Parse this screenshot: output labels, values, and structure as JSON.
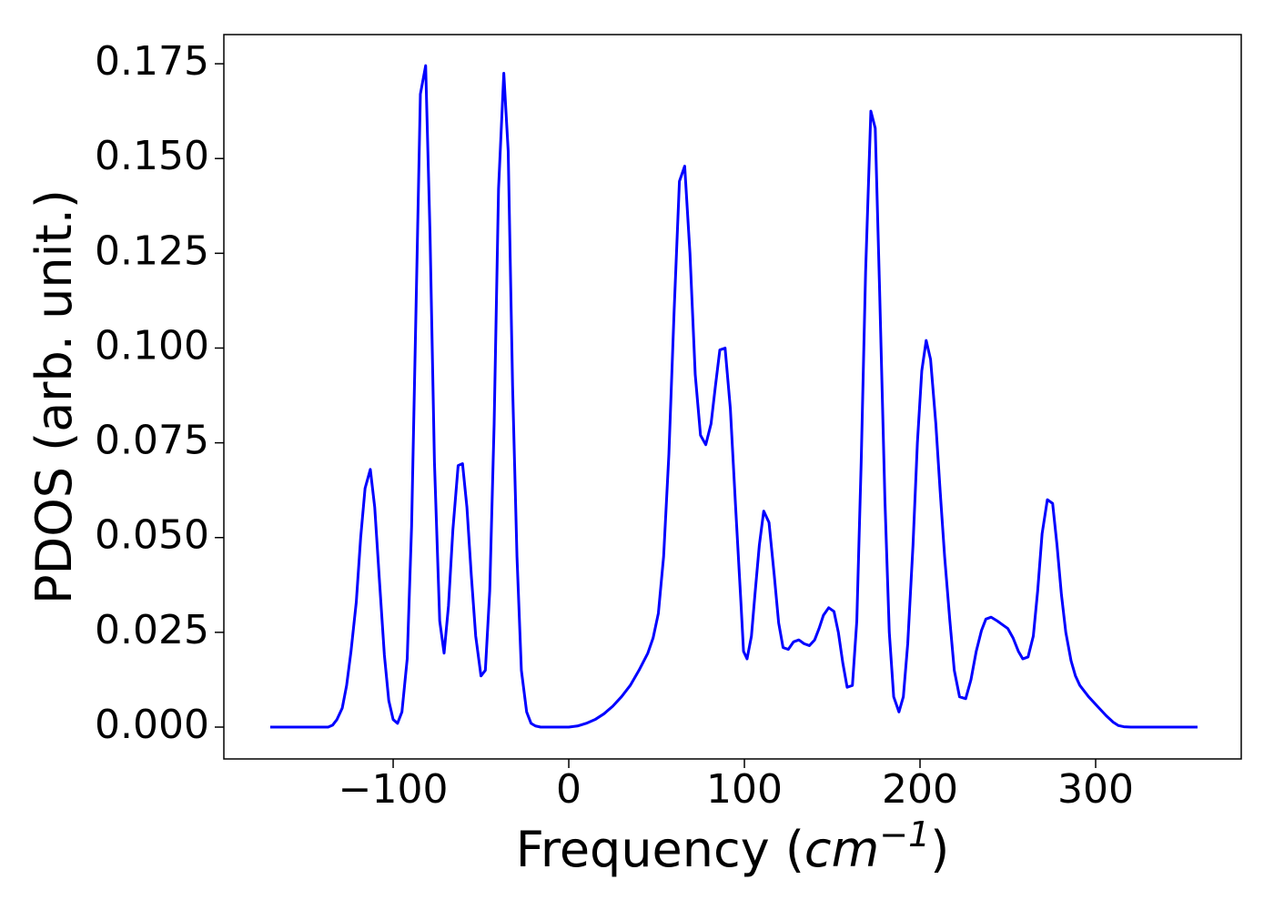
{
  "chart_data": {
    "type": "line",
    "ylabel": "PDOS (arb. unit.)",
    "xlabel": {
      "text": "Frequency (",
      "math": "cm",
      "sup": "−1",
      "close": ")"
    },
    "xlim": [
      -196.4,
      382.9
    ],
    "ylim": [
      -0.0084,
      0.1827
    ],
    "xticks": [
      {
        "value": -100,
        "label": "−100"
      },
      0,
      100,
      200,
      300
    ],
    "yticks": [
      {
        "value": 0,
        "label": "0.000"
      },
      {
        "value": 0.025,
        "label": "0.025"
      },
      {
        "value": 0.05,
        "label": "0.050"
      },
      {
        "value": 0.075,
        "label": "0.075"
      },
      {
        "value": 0.1,
        "label": "0.100"
      },
      {
        "value": 0.125,
        "label": "0.125"
      },
      {
        "value": 0.15,
        "label": "0.150"
      },
      {
        "value": 0.175,
        "label": "0.175"
      }
    ],
    "grid": false,
    "series": [
      {
        "color": "#0000ff",
        "x": [
          -170,
          -140,
          -137,
          -134.5,
          -132,
          -129,
          -126.5,
          -124,
          -121,
          -118.5,
          -116,
          -113,
          -110.5,
          -108,
          -105,
          -102.5,
          -100,
          -97.5,
          -95,
          -92,
          -89.5,
          -87,
          -84.5,
          -81.5,
          -79,
          -76.5,
          -73.5,
          -71,
          -68.5,
          -66,
          -63,
          -60.5,
          -58,
          -55.5,
          -53,
          -50,
          -47.5,
          -45,
          -42.5,
          -40,
          -37,
          -34.5,
          -32,
          -29.5,
          -27,
          -24,
          -21.5,
          -19,
          -16,
          0,
          5,
          10,
          15,
          20,
          25,
          30,
          35,
          40,
          45,
          48,
          51,
          54,
          57,
          60,
          63,
          66,
          69,
          72,
          75,
          78,
          81,
          83.5,
          86,
          89,
          92,
          95,
          98,
          99.5,
          101.5,
          104,
          106,
          108.5,
          111,
          114,
          117,
          119.5,
          122,
          125,
          128,
          131,
          134,
          137,
          140,
          142.5,
          145,
          148,
          151,
          153.5,
          156,
          158.5,
          161.5,
          164,
          166.5,
          169,
          172,
          174.5,
          177,
          180,
          182.5,
          185,
          188,
          190.5,
          193,
          196,
          198.5,
          201,
          203.5,
          206,
          209,
          211.5,
          214,
          217,
          219.5,
          222.5,
          226,
          229,
          232,
          235,
          237.5,
          240.5,
          244,
          247,
          250,
          253,
          256,
          258.5,
          261.5,
          264.5,
          267,
          269.5,
          272.5,
          275.5,
          278,
          280.5,
          283,
          286,
          288.5,
          291,
          296,
          301,
          306,
          310,
          313,
          316,
          320,
          358
        ],
        "values": [
          0,
          0,
          0,
          0.0005,
          0.002,
          0.005,
          0.011,
          0.02,
          0.033,
          0.05,
          0.063,
          0.068,
          0.058,
          0.04,
          0.019,
          0.007,
          0.002,
          0.001,
          0.004,
          0.018,
          0.053,
          0.11,
          0.167,
          0.1745,
          0.13,
          0.07,
          0.028,
          0.0195,
          0.032,
          0.052,
          0.069,
          0.0695,
          0.058,
          0.04,
          0.024,
          0.0135,
          0.015,
          0.036,
          0.08,
          0.142,
          0.1725,
          0.152,
          0.09,
          0.045,
          0.015,
          0.004,
          0.001,
          0.0003,
          0,
          0,
          0.0003,
          0.001,
          0.002,
          0.0035,
          0.0055,
          0.008,
          0.011,
          0.015,
          0.0195,
          0.0235,
          0.03,
          0.045,
          0.072,
          0.11,
          0.144,
          0.148,
          0.125,
          0.093,
          0.077,
          0.0745,
          0.08,
          0.09,
          0.0995,
          0.1,
          0.084,
          0.058,
          0.033,
          0.02,
          0.018,
          0.024,
          0.035,
          0.048,
          0.057,
          0.054,
          0.04,
          0.0275,
          0.021,
          0.0205,
          0.0225,
          0.023,
          0.022,
          0.0215,
          0.023,
          0.026,
          0.0295,
          0.0315,
          0.0305,
          0.025,
          0.017,
          0.0105,
          0.011,
          0.028,
          0.07,
          0.12,
          0.1625,
          0.158,
          0.115,
          0.06,
          0.025,
          0.008,
          0.004,
          0.008,
          0.022,
          0.048,
          0.075,
          0.094,
          0.102,
          0.097,
          0.08,
          0.062,
          0.045,
          0.028,
          0.015,
          0.008,
          0.0075,
          0.0125,
          0.02,
          0.0255,
          0.0285,
          0.029,
          0.028,
          0.027,
          0.026,
          0.0235,
          0.02,
          0.018,
          0.0185,
          0.024,
          0.036,
          0.051,
          0.06,
          0.059,
          0.048,
          0.035,
          0.025,
          0.0175,
          0.0135,
          0.011,
          0.008,
          0.0055,
          0.003,
          0.0013,
          0.0004,
          0.0001,
          0,
          0
        ]
      }
    ]
  }
}
